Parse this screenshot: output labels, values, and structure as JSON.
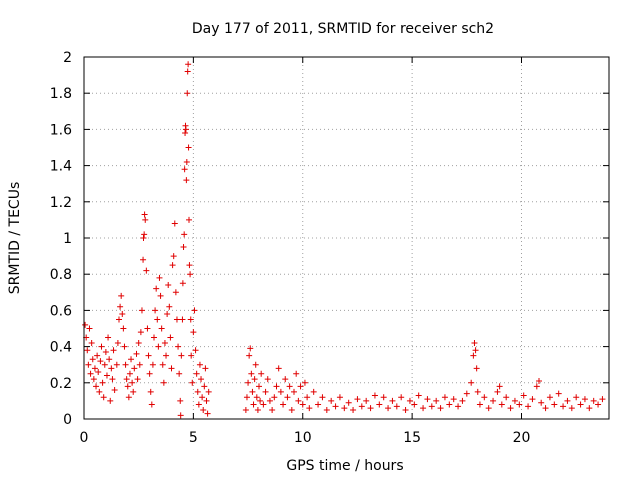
{
  "chart_data": {
    "type": "scatter",
    "title": "Day 177 of 2011, SRMTID for receiver sch2",
    "xlabel": "GPS time / hours",
    "ylabel": "SRMTID / TECUs",
    "xlim": [
      0,
      24
    ],
    "ylim": [
      0,
      2
    ],
    "x_ticks": [
      0,
      5,
      10,
      15,
      20
    ],
    "x_tick_labels": [
      "0",
      "5",
      "10",
      "15",
      "20"
    ],
    "y_ticks": [
      0,
      0.2,
      0.4,
      0.6,
      0.8,
      1,
      1.2,
      1.4,
      1.6,
      1.8,
      2
    ],
    "y_tick_labels": [
      "0",
      "0.2",
      "0.4",
      "0.6",
      "0.8",
      "1",
      "1.2",
      "1.4",
      "1.6",
      "1.8",
      "2"
    ],
    "grid": true,
    "marker": "+",
    "color": "#e00000",
    "series": [
      {
        "name": "SRMTID",
        "points": [
          [
            0.05,
            0.52
          ],
          [
            0.1,
            0.45
          ],
          [
            0.15,
            0.38
          ],
          [
            0.2,
            0.3
          ],
          [
            0.25,
            0.5
          ],
          [
            0.3,
            0.25
          ],
          [
            0.35,
            0.42
          ],
          [
            0.4,
            0.33
          ],
          [
            0.45,
            0.22
          ],
          [
            0.5,
            0.28
          ],
          [
            0.55,
            0.18
          ],
          [
            0.6,
            0.35
          ],
          [
            0.65,
            0.26
          ],
          [
            0.7,
            0.15
          ],
          [
            0.75,
            0.32
          ],
          [
            0.8,
            0.4
          ],
          [
            0.85,
            0.2
          ],
          [
            0.9,
            0.12
          ],
          [
            0.95,
            0.3
          ],
          [
            1.0,
            0.37
          ],
          [
            1.05,
            0.24
          ],
          [
            1.1,
            0.45
          ],
          [
            1.15,
            0.33
          ],
          [
            1.2,
            0.1
          ],
          [
            1.25,
            0.28
          ],
          [
            1.3,
            0.22
          ],
          [
            1.35,
            0.38
          ],
          [
            1.4,
            0.16
          ],
          [
            1.5,
            0.3
          ],
          [
            1.55,
            0.42
          ],
          [
            1.6,
            0.55
          ],
          [
            1.65,
            0.62
          ],
          [
            1.7,
            0.68
          ],
          [
            1.75,
            0.58
          ],
          [
            1.8,
            0.5
          ],
          [
            1.85,
            0.4
          ],
          [
            1.9,
            0.3
          ],
          [
            1.95,
            0.22
          ],
          [
            2.0,
            0.18
          ],
          [
            2.05,
            0.12
          ],
          [
            2.1,
            0.25
          ],
          [
            2.15,
            0.33
          ],
          [
            2.2,
            0.2
          ],
          [
            2.25,
            0.15
          ],
          [
            2.3,
            0.28
          ],
          [
            2.4,
            0.36
          ],
          [
            2.45,
            0.22
          ],
          [
            2.5,
            0.42
          ],
          [
            2.55,
            0.3
          ],
          [
            2.6,
            0.48
          ],
          [
            2.65,
            0.6
          ],
          [
            2.7,
            0.88
          ],
          [
            2.72,
            1.0
          ],
          [
            2.75,
            1.02
          ],
          [
            2.77,
            1.13
          ],
          [
            2.8,
            1.1
          ],
          [
            2.85,
            0.82
          ],
          [
            2.9,
            0.5
          ],
          [
            2.95,
            0.35
          ],
          [
            3.0,
            0.25
          ],
          [
            3.05,
            0.15
          ],
          [
            3.1,
            0.08
          ],
          [
            3.15,
            0.3
          ],
          [
            3.2,
            0.45
          ],
          [
            3.25,
            0.6
          ],
          [
            3.3,
            0.72
          ],
          [
            3.35,
            0.55
          ],
          [
            3.4,
            0.4
          ],
          [
            3.45,
            0.78
          ],
          [
            3.5,
            0.68
          ],
          [
            3.55,
            0.5
          ],
          [
            3.6,
            0.3
          ],
          [
            3.65,
            0.2
          ],
          [
            3.7,
            0.42
          ],
          [
            3.75,
            0.35
          ],
          [
            3.8,
            0.58
          ],
          [
            3.85,
            0.74
          ],
          [
            3.9,
            0.62
          ],
          [
            3.95,
            0.45
          ],
          [
            4.0,
            0.28
          ],
          [
            4.05,
            0.85
          ],
          [
            4.1,
            0.9
          ],
          [
            4.15,
            1.08
          ],
          [
            4.2,
            0.7
          ],
          [
            4.25,
            0.55
          ],
          [
            4.3,
            0.4
          ],
          [
            4.35,
            0.25
          ],
          [
            4.4,
            0.1
          ],
          [
            4.42,
            0.02
          ],
          [
            4.45,
            0.35
          ],
          [
            4.5,
            0.55
          ],
          [
            4.52,
            0.75
          ],
          [
            4.55,
            0.95
          ],
          [
            4.58,
            1.02
          ],
          [
            4.6,
            1.38
          ],
          [
            4.62,
            1.58
          ],
          [
            4.64,
            1.62
          ],
          [
            4.66,
            1.6
          ],
          [
            4.68,
            1.32
          ],
          [
            4.7,
            1.42
          ],
          [
            4.72,
            1.8
          ],
          [
            4.74,
            1.92
          ],
          [
            4.76,
            1.96
          ],
          [
            4.78,
            1.5
          ],
          [
            4.8,
            1.1
          ],
          [
            4.82,
            0.85
          ],
          [
            4.85,
            0.8
          ],
          [
            4.88,
            0.55
          ],
          [
            4.9,
            0.35
          ],
          [
            4.95,
            0.2
          ],
          [
            5.0,
            0.48
          ],
          [
            5.05,
            0.6
          ],
          [
            5.1,
            0.38
          ],
          [
            5.15,
            0.25
          ],
          [
            5.2,
            0.15
          ],
          [
            5.25,
            0.08
          ],
          [
            5.3,
            0.3
          ],
          [
            5.35,
            0.22
          ],
          [
            5.4,
            0.12
          ],
          [
            5.45,
            0.05
          ],
          [
            5.5,
            0.18
          ],
          [
            5.55,
            0.28
          ],
          [
            5.6,
            0.1
          ],
          [
            5.65,
            0.03
          ],
          [
            5.7,
            0.15
          ],
          [
            7.4,
            0.05
          ],
          [
            7.45,
            0.12
          ],
          [
            7.5,
            0.2
          ],
          [
            7.55,
            0.35
          ],
          [
            7.6,
            0.39
          ],
          [
            7.65,
            0.25
          ],
          [
            7.7,
            0.15
          ],
          [
            7.75,
            0.08
          ],
          [
            7.8,
            0.22
          ],
          [
            7.85,
            0.3
          ],
          [
            7.9,
            0.12
          ],
          [
            7.95,
            0.05
          ],
          [
            8.0,
            0.18
          ],
          [
            8.05,
            0.1
          ],
          [
            8.1,
            0.25
          ],
          [
            8.2,
            0.08
          ],
          [
            8.3,
            0.15
          ],
          [
            8.4,
            0.22
          ],
          [
            8.5,
            0.1
          ],
          [
            8.6,
            0.05
          ],
          [
            8.7,
            0.12
          ],
          [
            8.8,
            0.18
          ],
          [
            8.9,
            0.28
          ],
          [
            9.0,
            0.15
          ],
          [
            9.1,
            0.08
          ],
          [
            9.2,
            0.22
          ],
          [
            9.3,
            0.12
          ],
          [
            9.4,
            0.18
          ],
          [
            9.5,
            0.05
          ],
          [
            9.6,
            0.15
          ],
          [
            9.7,
            0.25
          ],
          [
            9.8,
            0.1
          ],
          [
            9.9,
            0.18
          ],
          [
            10.0,
            0.08
          ],
          [
            10.1,
            0.2
          ],
          [
            10.2,
            0.12
          ],
          [
            10.3,
            0.06
          ],
          [
            10.5,
            0.15
          ],
          [
            10.7,
            0.08
          ],
          [
            10.9,
            0.12
          ],
          [
            11.1,
            0.05
          ],
          [
            11.3,
            0.1
          ],
          [
            11.5,
            0.07
          ],
          [
            11.7,
            0.12
          ],
          [
            11.9,
            0.06
          ],
          [
            12.1,
            0.09
          ],
          [
            12.3,
            0.05
          ],
          [
            12.5,
            0.11
          ],
          [
            12.7,
            0.07
          ],
          [
            12.9,
            0.1
          ],
          [
            13.1,
            0.06
          ],
          [
            13.3,
            0.13
          ],
          [
            13.5,
            0.08
          ],
          [
            13.7,
            0.12
          ],
          [
            13.9,
            0.06
          ],
          [
            14.1,
            0.1
          ],
          [
            14.3,
            0.07
          ],
          [
            14.5,
            0.12
          ],
          [
            14.7,
            0.05
          ],
          [
            14.9,
            0.1
          ],
          [
            15.1,
            0.08
          ],
          [
            15.3,
            0.13
          ],
          [
            15.5,
            0.06
          ],
          [
            15.7,
            0.11
          ],
          [
            15.9,
            0.07
          ],
          [
            16.1,
            0.1
          ],
          [
            16.3,
            0.06
          ],
          [
            16.5,
            0.12
          ],
          [
            16.7,
            0.08
          ],
          [
            16.9,
            0.11
          ],
          [
            17.1,
            0.07
          ],
          [
            17.3,
            0.1
          ],
          [
            17.5,
            0.14
          ],
          [
            17.7,
            0.2
          ],
          [
            17.8,
            0.35
          ],
          [
            17.85,
            0.42
          ],
          [
            17.9,
            0.38
          ],
          [
            17.95,
            0.28
          ],
          [
            18.0,
            0.15
          ],
          [
            18.1,
            0.08
          ],
          [
            18.3,
            0.12
          ],
          [
            18.5,
            0.06
          ],
          [
            18.7,
            0.1
          ],
          [
            18.9,
            0.15
          ],
          [
            19.0,
            0.18
          ],
          [
            19.1,
            0.08
          ],
          [
            19.3,
            0.12
          ],
          [
            19.5,
            0.06
          ],
          [
            19.7,
            0.1
          ],
          [
            19.9,
            0.08
          ],
          [
            20.1,
            0.13
          ],
          [
            20.3,
            0.07
          ],
          [
            20.5,
            0.11
          ],
          [
            20.7,
            0.18
          ],
          [
            20.8,
            0.21
          ],
          [
            20.9,
            0.09
          ],
          [
            21.1,
            0.06
          ],
          [
            21.3,
            0.12
          ],
          [
            21.5,
            0.08
          ],
          [
            21.7,
            0.14
          ],
          [
            21.9,
            0.07
          ],
          [
            22.1,
            0.1
          ],
          [
            22.3,
            0.06
          ],
          [
            22.5,
            0.12
          ],
          [
            22.7,
            0.08
          ],
          [
            22.9,
            0.11
          ],
          [
            23.1,
            0.06
          ],
          [
            23.3,
            0.1
          ],
          [
            23.5,
            0.08
          ],
          [
            23.7,
            0.11
          ]
        ]
      }
    ]
  }
}
